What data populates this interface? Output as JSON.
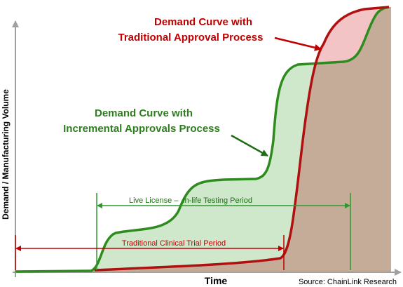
{
  "title_traditional": [
    "Demand Curve with",
    "Traditional Approval Process"
  ],
  "title_incremental": [
    "Demand Curve with",
    "Incremental Approvals Process"
  ],
  "period_live": "Live License –  In-life Testing Period",
  "period_clinical": "Traditional Clinical Trial Period",
  "y_axis_label": "Demand / Manufacturing Volume",
  "x_axis_label": "Time",
  "source": "Source: ChainLink Research"
}
